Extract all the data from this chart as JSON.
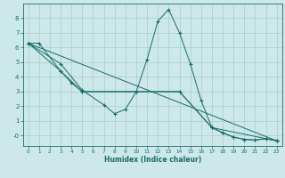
{
  "xlabel": "Humidex (Indice chaleur)",
  "bg_color": "#cce8e8",
  "grid_color": "#aacccc",
  "line_color": "#1a6b6b",
  "xlim": [
    -0.5,
    23.5
  ],
  "ylim": [
    -0.7,
    9.0
  ],
  "xticks": [
    0,
    1,
    2,
    3,
    4,
    5,
    6,
    7,
    8,
    9,
    10,
    11,
    12,
    13,
    14,
    15,
    16,
    17,
    18,
    19,
    20,
    21,
    22,
    23
  ],
  "yticks": [
    0,
    1,
    2,
    3,
    4,
    5,
    6,
    7,
    8
  ],
  "ytick_labels": [
    "-0",
    "1",
    "2",
    "3",
    "4",
    "5",
    "6",
    "7",
    "8"
  ],
  "line1_x": [
    0,
    1,
    3,
    4,
    5,
    10,
    11,
    12,
    13,
    14,
    15,
    16,
    17,
    18,
    19,
    20,
    21,
    22,
    23
  ],
  "line1_y": [
    6.3,
    6.3,
    4.4,
    3.6,
    3.0,
    3.0,
    5.2,
    7.8,
    8.6,
    7.0,
    4.9,
    2.4,
    0.55,
    0.2,
    -0.1,
    -0.25,
    -0.3,
    -0.2,
    -0.35
  ],
  "line2_x": [
    0,
    3,
    5,
    10,
    14,
    17,
    18,
    19,
    20,
    21,
    22,
    23
  ],
  "line2_y": [
    6.3,
    4.4,
    3.0,
    3.0,
    3.0,
    0.55,
    0.2,
    -0.1,
    -0.25,
    -0.3,
    -0.2,
    -0.35
  ],
  "line3_x": [
    0,
    3,
    5,
    7,
    8,
    9,
    10,
    14,
    17,
    23
  ],
  "line3_y": [
    6.3,
    4.9,
    3.1,
    2.1,
    1.5,
    1.8,
    3.0,
    3.0,
    0.55,
    -0.35
  ],
  "line4_x": [
    0,
    23
  ],
  "line4_y": [
    6.3,
    -0.35
  ]
}
